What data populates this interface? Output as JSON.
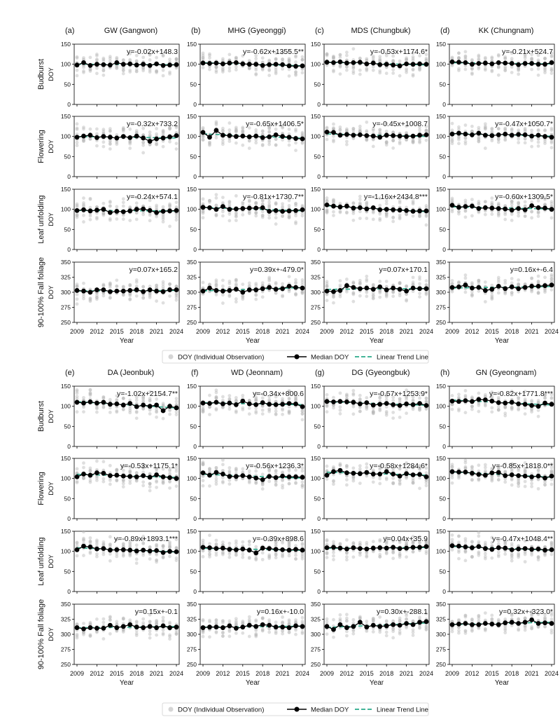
{
  "figure": {
    "title": "",
    "x_ticks": [
      "2009",
      "2012",
      "2015",
      "2018",
      "2021",
      "2024"
    ],
    "x_axis_label": "Year",
    "y_axis_unit": "DOY",
    "legend": {
      "individual": "DOY (Individual Observation)",
      "median": "Median DOY",
      "trend": "Linear Trend Line"
    },
    "colors": {
      "individual_points": "#b9b9b9",
      "median_line": "#000000",
      "trend_line": "#2aa98a"
    }
  },
  "row_labels": [
    "Budburst",
    "Flowering",
    "Leaf unfolding",
    "90-100% Fall foliage"
  ],
  "chart_data": [
    {
      "type": "panel_group",
      "group": "top",
      "panels": [
        {
          "letter": "(a)",
          "title": "GW (Gangwon)"
        },
        {
          "letter": "(b)",
          "title": "MHG (Gyeonggi)"
        },
        {
          "letter": "(c)",
          "title": "MDS (Chungbuk)"
        },
        {
          "letter": "(d)",
          "title": "KK (Chungnam)"
        }
      ],
      "rows": [
        {
          "phase": "Budburst",
          "ylim": [
            0,
            150
          ],
          "yticks": [
            0,
            50,
            100,
            150
          ],
          "cells": [
            {
              "equation": "y=-0.02x+148.3",
              "median": [
                98,
                104,
                97,
                100,
                99,
                98,
                104,
                100,
                101,
                98,
                100,
                97,
                101,
                97,
                98,
                99
              ]
            },
            {
              "equation": "y=-0.62x+1355.5**",
              "median": [
                103,
                102,
                103,
                101,
                103,
                104,
                101,
                100,
                100,
                97,
                99,
                100,
                99,
                96,
                95,
                96
              ]
            },
            {
              "equation": "y=-0.53x+1174.6*",
              "median": [
                105,
                104,
                106,
                103,
                104,
                105,
                101,
                103,
                99,
                100,
                98,
                96,
                101,
                100,
                101,
                100
              ]
            },
            {
              "equation": "y=-0.21x+524.7",
              "median": [
                106,
                105,
                104,
                100,
                102,
                103,
                101,
                104,
                103,
                102,
                99,
                102,
                102,
                100,
                100,
                104
              ]
            }
          ]
        },
        {
          "phase": "Flowering",
          "ylim": [
            0,
            150
          ],
          "yticks": [
            0,
            50,
            100,
            150
          ],
          "cells": [
            {
              "equation": "y=-0.32x+733.2",
              "median": [
                98,
                101,
                103,
                97,
                100,
                98,
                96,
                100,
                97,
                101,
                96,
                88,
                94,
                96,
                99,
                102
              ]
            },
            {
              "equation": "y=-0.65x+1406.5*",
              "median": [
                110,
                98,
                115,
                103,
                102,
                100,
                101,
                99,
                101,
                97,
                99,
                104,
                100,
                98,
                95,
                94
              ]
            },
            {
              "equation": "y=-0.45x+1008.7",
              "median": [
                111,
                110,
                103,
                105,
                103,
                104,
                102,
                101,
                98,
                103,
                102,
                101,
                100,
                101,
                103,
                104
              ]
            },
            {
              "equation": "y=-0.47x+1050.7*",
              "median": [
                106,
                108,
                106,
                104,
                108,
                103,
                102,
                104,
                106,
                103,
                105,
                104,
                101,
                103,
                100,
                98
              ]
            }
          ]
        },
        {
          "phase": "Leaf unfolding",
          "ylim": [
            0,
            150
          ],
          "yticks": [
            0,
            50,
            100,
            150
          ],
          "cells": [
            {
              "equation": "y=-0.24x+574.1",
              "median": [
                97,
                99,
                96,
                98,
                100,
                92,
                95,
                94,
                96,
                100,
                101,
                97,
                92,
                95,
                96,
                97
              ]
            },
            {
              "equation": "y=-0.81x+1730.7**",
              "median": [
                105,
                104,
                100,
                107,
                100,
                101,
                102,
                103,
                103,
                104,
                95,
                97,
                95,
                96,
                97,
                99
              ]
            },
            {
              "equation": "y=-1.16x+2434.8***",
              "median": [
                111,
                108,
                106,
                108,
                103,
                104,
                101,
                104,
                99,
                100,
                99,
                98,
                97,
                95,
                96,
                96
              ]
            },
            {
              "equation": "y=-0.60x+1309.5*",
              "median": [
                110,
                105,
                107,
                108,
                102,
                104,
                103,
                102,
                101,
                98,
                102,
                99,
                109,
                104,
                103,
                100
              ]
            }
          ]
        },
        {
          "phase": "90-100% Fall foliage",
          "ylim": [
            250,
            350
          ],
          "yticks": [
            250,
            275,
            300,
            325,
            350
          ],
          "cells": [
            {
              "equation": "y=0.07x+165.2",
              "median": [
                303,
                302,
                300,
                304,
                304,
                301,
                302,
                302,
                303,
                304,
                301,
                304,
                302,
                301,
                304,
                304
              ]
            },
            {
              "equation": "y=0.39x+-479.0*",
              "median": [
                302,
                307,
                303,
                302,
                303,
                305,
                300,
                304,
                304,
                306,
                308,
                305,
                306,
                310,
                308,
                307
              ]
            },
            {
              "equation": "y=0.07x+170.1",
              "median": [
                302,
                301,
                303,
                311,
                308,
                306,
                307,
                305,
                309,
                304,
                307,
                305,
                302,
                307,
                306,
                306
              ]
            },
            {
              "equation": "y=0.16x+-6.4",
              "median": [
                308,
                309,
                312,
                307,
                308,
                303,
                305,
                310,
                306,
                309,
                306,
                308,
                310,
                310,
                311,
                312
              ]
            }
          ]
        }
      ]
    },
    {
      "type": "panel_group",
      "group": "bottom",
      "panels": [
        {
          "letter": "(e)",
          "title": "DA (Jeonbuk)"
        },
        {
          "letter": "(f)",
          "title": "WD (Jeonnam)"
        },
        {
          "letter": "(g)",
          "title": "DG (Gyeongbuk)"
        },
        {
          "letter": "(h)",
          "title": "GN (Gyeongnam)"
        }
      ],
      "rows": [
        {
          "phase": "Budburst",
          "ylim": [
            0,
            150
          ],
          "yticks": [
            0,
            50,
            100,
            150
          ],
          "cells": [
            {
              "equation": "y=-1.02x+2154.7**",
              "median": [
                110,
                108,
                111,
                108,
                110,
                105,
                106,
                103,
                107,
                99,
                103,
                100,
                103,
                89,
                100,
                96
              ]
            },
            {
              "equation": "y=-0.34x+800.6",
              "median": [
                108,
                107,
                110,
                106,
                108,
                104,
                113,
                106,
                104,
                109,
                105,
                104,
                105,
                107,
                106,
                99
              ]
            },
            {
              "equation": "y=-0.57x+1253.9*",
              "median": [
                112,
                111,
                112,
                111,
                110,
                106,
                109,
                103,
                105,
                107,
                104,
                102,
                106,
                104,
                107,
                102
              ]
            },
            {
              "equation": "y=-0.82x+1771.8***",
              "median": [
                113,
                112,
                114,
                112,
                117,
                116,
                113,
                109,
                108,
                110,
                106,
                105,
                102,
                100,
                108,
                105
              ]
            }
          ]
        },
        {
          "phase": "Flowering",
          "ylim": [
            0,
            150
          ],
          "yticks": [
            0,
            50,
            100,
            150
          ],
          "cells": [
            {
              "equation": "y=-0.53x+1175.1*",
              "median": [
                104,
                111,
                108,
                114,
                113,
                107,
                108,
                106,
                105,
                104,
                107,
                103,
                109,
                104,
                102,
                100
              ]
            },
            {
              "equation": "y=-0.56x+1236.3*",
              "median": [
                114,
                108,
                115,
                111,
                105,
                105,
                107,
                104,
                101,
                97,
                105,
                102,
                106,
                104,
                104,
                103
              ]
            },
            {
              "equation": "y=-0.58x+1284.6*",
              "median": [
                108,
                117,
                120,
                114,
                113,
                112,
                115,
                111,
                111,
                117,
                111,
                106,
                112,
                109,
                110,
                104
              ]
            },
            {
              "equation": "y=-0.85x+1818.0**",
              "median": [
                117,
                116,
                116,
                113,
                110,
                108,
                114,
                115,
                107,
                109,
                107,
                106,
                104,
                106,
                101,
                106
              ]
            }
          ]
        },
        {
          "phase": "Leaf unfolding",
          "ylim": [
            0,
            150
          ],
          "yticks": [
            0,
            50,
            100,
            150
          ],
          "cells": [
            {
              "equation": "y=-0.89x+1893.1***",
              "median": [
                104,
                113,
                111,
                106,
                107,
                103,
                104,
                104,
                103,
                101,
                103,
                101,
                102,
                97,
                100,
                99
              ]
            },
            {
              "equation": "y=-0.39x+898.6",
              "median": [
                110,
                109,
                107,
                108,
                105,
                104,
                106,
                103,
                96,
                108,
                107,
                105,
                104,
                103,
                105,
                103
              ]
            },
            {
              "equation": "y=0.04x+35.9",
              "median": [
                109,
                110,
                108,
                106,
                109,
                107,
                106,
                108,
                109,
                108,
                110,
                107,
                108,
                110,
                110,
                112
              ]
            },
            {
              "equation": "y=-0.47x+1048.4**",
              "median": [
                114,
                113,
                111,
                109,
                112,
                107,
                105,
                109,
                108,
                104,
                106,
                107,
                105,
                106,
                103,
                104
              ]
            }
          ]
        },
        {
          "phase": "90-100% Fall foliage",
          "ylim": [
            250,
            350
          ],
          "yticks": [
            250,
            275,
            300,
            325,
            350
          ],
          "cells": [
            {
              "equation": "y=0.15x+-0.1",
              "median": [
                311,
                309,
                311,
                310,
                310,
                315,
                311,
                313,
                316,
                312,
                311,
                313,
                311,
                314,
                311,
                312
              ]
            },
            {
              "equation": "y=0.16x+-10.0",
              "median": [
                311,
                312,
                312,
                311,
                314,
                310,
                312,
                315,
                313,
                316,
                315,
                312,
                312,
                311,
                314,
                313
              ]
            },
            {
              "equation": "y=0.30x+-288.1",
              "median": [
                313,
                308,
                316,
                311,
                313,
                320,
                312,
                315,
                313,
                314,
                316,
                315,
                318,
                316,
                320,
                321
              ]
            },
            {
              "equation": "y=0.32x+-323.0*",
              "median": [
                316,
                317,
                318,
                316,
                316,
                318,
                317,
                316,
                319,
                320,
                318,
                320,
                324,
                318,
                319,
                318
              ]
            }
          ]
        }
      ]
    }
  ]
}
